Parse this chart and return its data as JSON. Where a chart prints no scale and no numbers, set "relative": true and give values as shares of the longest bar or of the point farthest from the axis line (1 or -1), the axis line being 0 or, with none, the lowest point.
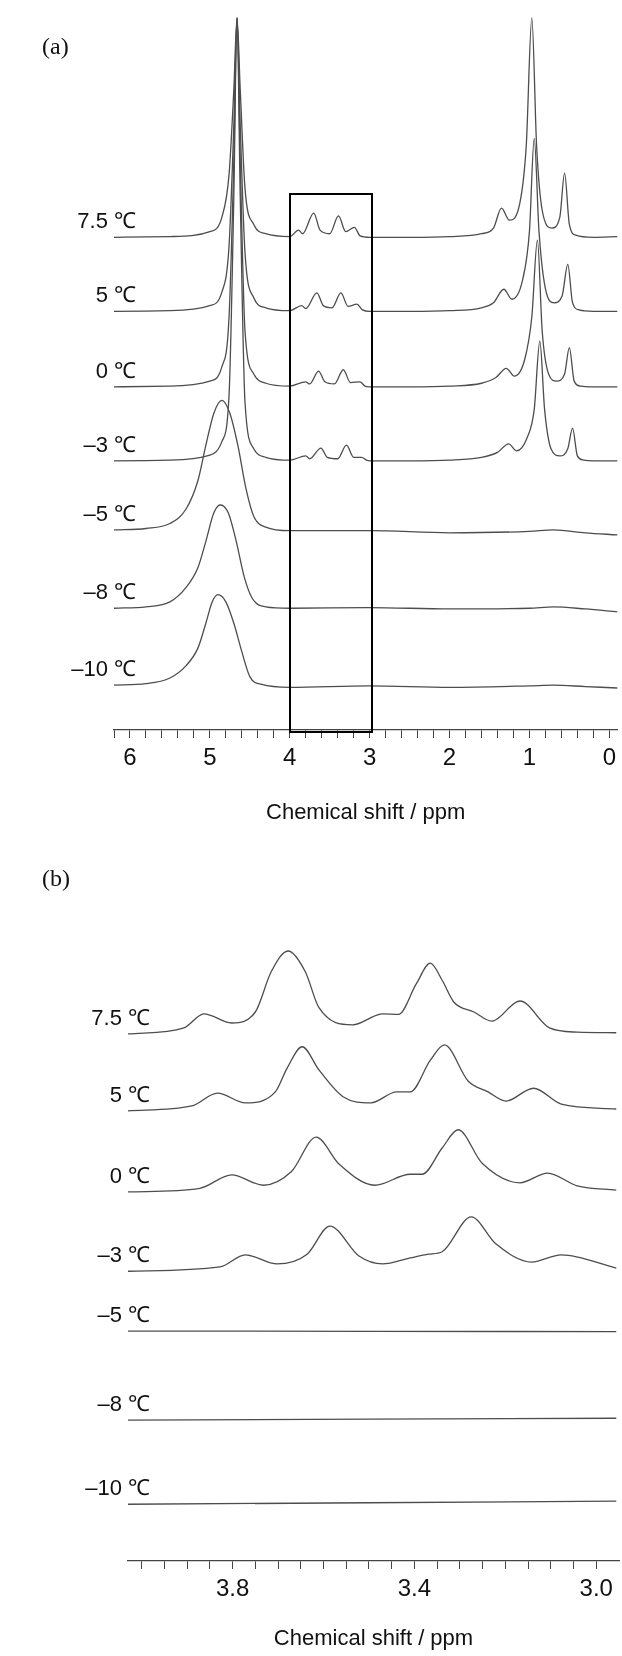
{
  "chart_data": [
    {
      "type": "line",
      "title": "(a)",
      "xlabel": "Chemical shift / ppm",
      "relative": true,
      "marker": "none",
      "xlim": [
        6.2,
        -0.1
      ],
      "xticks": [
        {
          "value": 6.2,
          "label": null
        },
        6,
        {
          "value": 5.8,
          "label": null
        },
        {
          "value": 5.6,
          "label": null
        },
        {
          "value": 5.4,
          "label": null
        },
        {
          "value": 5.2,
          "label": null
        },
        5,
        {
          "value": 4.8,
          "label": null
        },
        {
          "value": 4.6,
          "label": null
        },
        {
          "value": 4.4,
          "label": null
        },
        {
          "value": 4.2,
          "label": null
        },
        4,
        {
          "value": 3.8,
          "label": null
        },
        {
          "value": 3.6,
          "label": null
        },
        {
          "value": 3.4,
          "label": null
        },
        {
          "value": 3.2,
          "label": null
        },
        3,
        {
          "value": 2.8,
          "label": null
        },
        {
          "value": 2.6,
          "label": null
        },
        {
          "value": 2.4,
          "label": null
        },
        {
          "value": 2.2,
          "label": null
        },
        2,
        {
          "value": 1.8,
          "label": null
        },
        {
          "value": 1.6,
          "label": null
        },
        {
          "value": 1.4,
          "label": null
        },
        {
          "value": 1.2,
          "label": null
        },
        1,
        {
          "value": 0.8,
          "label": null
        },
        {
          "value": 0.6,
          "label": null
        },
        {
          "value": 0.4,
          "label": null
        },
        {
          "value": 0.2,
          "label": null
        },
        0
      ],
      "series": [
        {
          "name": "7.5 ℃",
          "color": "#4d4d4d",
          "x": [
            6.2,
            5.5,
            5.0,
            4.85,
            4.76,
            4.7,
            4.66,
            4.62,
            4.56,
            4.45,
            4.3,
            4.0,
            3.89,
            3.84,
            3.7,
            3.62,
            3.5,
            3.39,
            3.3,
            3.19,
            3.12,
            3.0,
            2.5,
            2.0,
            1.6,
            1.45,
            1.35,
            1.25,
            1.12,
            1.04,
            0.97,
            0.91,
            0.84,
            0.72,
            0.62,
            0.56,
            0.5,
            0.42,
            0.2,
            -0.1
          ],
          "values": [
            0.692,
            0.693,
            0.7,
            0.72,
            0.78,
            0.9,
            1,
            0.9,
            0.76,
            0.71,
            0.697,
            0.693,
            0.702,
            0.697,
            0.726,
            0.702,
            0.697,
            0.722,
            0.7,
            0.706,
            0.694,
            0.692,
            0.692,
            0.693,
            0.697,
            0.705,
            0.733,
            0.716,
            0.74,
            0.82,
            1,
            0.82,
            0.73,
            0.705,
            0.72,
            0.782,
            0.71,
            0.695,
            0.692,
            0.693
          ]
        },
        {
          "name": "5 ℃",
          "color": "#4d4d4d",
          "x": [
            6.2,
            5.5,
            5.0,
            4.85,
            4.76,
            4.7,
            4.66,
            4.62,
            4.56,
            4.45,
            4.3,
            4.0,
            3.85,
            3.8,
            3.66,
            3.58,
            3.47,
            3.36,
            3.27,
            3.16,
            3.09,
            3.0,
            2.5,
            2.0,
            1.6,
            1.45,
            1.32,
            1.22,
            1.09,
            1.0,
            0.94,
            0.88,
            0.8,
            0.69,
            0.59,
            0.52,
            0.46,
            0.38,
            0.2,
            -0.1
          ],
          "values": [
            0.588,
            0.589,
            0.596,
            0.615,
            0.68,
            0.85,
            1,
            0.85,
            0.67,
            0.607,
            0.593,
            0.589,
            0.596,
            0.592,
            0.614,
            0.596,
            0.593,
            0.614,
            0.595,
            0.598,
            0.59,
            0.588,
            0.588,
            0.589,
            0.593,
            0.6,
            0.619,
            0.605,
            0.63,
            0.7,
            0.831,
            0.7,
            0.62,
            0.6,
            0.61,
            0.654,
            0.6,
            0.59,
            0.588,
            0.588
          ]
        },
        {
          "name": "0 ℃",
          "color": "#4d4d4d",
          "x": [
            6.2,
            5.5,
            5.0,
            4.85,
            4.76,
            4.7,
            4.66,
            4.62,
            4.56,
            4.45,
            4.3,
            4.0,
            3.8,
            3.75,
            3.64,
            3.56,
            3.44,
            3.33,
            3.24,
            3.12,
            3.06,
            3.0,
            2.5,
            2.0,
            1.6,
            1.42,
            1.29,
            1.19,
            1.06,
            0.97,
            0.9,
            0.84,
            0.76,
            0.66,
            0.56,
            0.5,
            0.44,
            0.36,
            0.2,
            -0.1
          ],
          "values": [
            0.482,
            0.483,
            0.49,
            0.51,
            0.58,
            0.8,
            1,
            0.8,
            0.56,
            0.5,
            0.487,
            0.483,
            0.489,
            0.486,
            0.504,
            0.489,
            0.486,
            0.506,
            0.488,
            0.489,
            0.483,
            0.482,
            0.482,
            0.483,
            0.487,
            0.495,
            0.508,
            0.497,
            0.52,
            0.58,
            0.688,
            0.56,
            0.5,
            0.49,
            0.5,
            0.537,
            0.49,
            0.483,
            0.482,
            0.482
          ]
        },
        {
          "name": "–3 ℃",
          "color": "#4d4d4d",
          "x": [
            6.2,
            5.5,
            5.0,
            4.85,
            4.76,
            4.7,
            4.66,
            4.62,
            4.56,
            4.45,
            4.3,
            4.0,
            3.8,
            3.75,
            3.61,
            3.53,
            3.4,
            3.29,
            3.2,
            3.1,
            3.04,
            3.0,
            2.5,
            2.0,
            1.6,
            1.4,
            1.26,
            1.16,
            1.03,
            0.94,
            0.87,
            0.81,
            0.73,
            0.62,
            0.52,
            0.46,
            0.4,
            0.32,
            0.2,
            -0.1
          ],
          "values": [
            0.378,
            0.379,
            0.386,
            0.405,
            0.47,
            0.75,
            1,
            0.75,
            0.46,
            0.395,
            0.383,
            0.379,
            0.385,
            0.381,
            0.396,
            0.383,
            0.381,
            0.4,
            0.383,
            0.383,
            0.379,
            0.378,
            0.378,
            0.379,
            0.383,
            0.39,
            0.402,
            0.392,
            0.41,
            0.45,
            0.546,
            0.45,
            0.395,
            0.385,
            0.395,
            0.424,
            0.385,
            0.379,
            0.378,
            0.378
          ]
        },
        {
          "name": "–5 ℃",
          "color": "#4d4d4d",
          "x": [
            6.2,
            5.8,
            5.5,
            5.3,
            5.15,
            5.05,
            4.95,
            4.85,
            4.75,
            4.65,
            4.55,
            4.45,
            4.3,
            4.0,
            3.0,
            2.0,
            1.0,
            0.7,
            0.3,
            -0.1
          ],
          "values": [
            0.281,
            0.283,
            0.29,
            0.31,
            0.35,
            0.4,
            0.445,
            0.463,
            0.445,
            0.4,
            0.34,
            0.3,
            0.285,
            0.28,
            0.28,
            0.277,
            0.279,
            0.281,
            0.277,
            0.274
          ]
        },
        {
          "name": "–8 ℃",
          "color": "#4d4d4d",
          "x": [
            6.2,
            5.8,
            5.5,
            5.3,
            5.15,
            5.05,
            4.95,
            4.87,
            4.77,
            4.67,
            4.57,
            4.47,
            4.3,
            4.0,
            3.0,
            2.0,
            1.0,
            0.7,
            0.3,
            -0.1
          ],
          "values": [
            0.171,
            0.173,
            0.18,
            0.2,
            0.228,
            0.265,
            0.305,
            0.316,
            0.305,
            0.265,
            0.215,
            0.185,
            0.173,
            0.171,
            0.172,
            0.17,
            0.171,
            0.173,
            0.17,
            0.166
          ]
        },
        {
          "name": "–10 ℃",
          "color": "#4d4d4d",
          "x": [
            6.2,
            5.8,
            5.5,
            5.3,
            5.15,
            5.05,
            4.97,
            4.9,
            4.8,
            4.7,
            4.6,
            4.5,
            4.35,
            4.0,
            3.0,
            2.0,
            1.0,
            0.7,
            0.3,
            -0.1
          ],
          "values": [
            0.063,
            0.065,
            0.073,
            0.09,
            0.115,
            0.15,
            0.18,
            0.19,
            0.18,
            0.15,
            0.11,
            0.075,
            0.064,
            0.06,
            0.062,
            0.06,
            0.062,
            0.063,
            0.061,
            0.059
          ]
        }
      ]
    },
    {
      "type": "line",
      "title": "(b)",
      "xlabel": "Chemical shift / ppm",
      "relative": true,
      "marker": "none",
      "xlim": [
        4.03,
        2.95
      ],
      "xticks": [
        {
          "value": 4.0,
          "label": null
        },
        {
          "value": 3.95,
          "label": null
        },
        {
          "value": 3.9,
          "label": null
        },
        {
          "value": 3.85,
          "label": null
        },
        3.8,
        {
          "value": 3.75,
          "label": null
        },
        {
          "value": 3.7,
          "label": null
        },
        {
          "value": 3.65,
          "label": null
        },
        {
          "value": 3.6,
          "label": null
        },
        {
          "value": 3.55,
          "label": null
        },
        {
          "value": 3.5,
          "label": null
        },
        {
          "value": 3.45,
          "label": null
        },
        3.4,
        {
          "value": 3.35,
          "label": null
        },
        {
          "value": 3.3,
          "label": null
        },
        {
          "value": 3.25,
          "label": null
        },
        {
          "value": 3.2,
          "label": null
        },
        {
          "value": 3.15,
          "label": null
        },
        {
          "value": 3.1,
          "label": null
        },
        {
          "value": 3.05,
          "label": null
        },
        {
          "value": 3.0,
          "label": "3.0"
        }
      ],
      "series": [
        {
          "name": "7.5 ℃",
          "color": "#4d4d4d",
          "x": [
            4.03,
            3.907,
            3.863,
            3.802,
            3.75,
            3.715,
            3.678,
            3.64,
            3.61,
            3.536,
            3.47,
            3.435,
            3.396,
            3.365,
            3.339,
            3.313,
            3.269,
            3.23,
            3.168,
            3.103,
            3.042,
            2.956
          ],
          "values": [
            0.864,
            0.874,
            0.897,
            0.882,
            0.9,
            0.966,
            1,
            0.966,
            0.907,
            0.879,
            0.897,
            0.896,
            0.946,
            0.98,
            0.952,
            0.916,
            0.9,
            0.885,
            0.918,
            0.874,
            0.867,
            0.866
          ]
        },
        {
          "name": "5 ℃",
          "color": "#4d4d4d",
          "x": [
            4.03,
            3.89,
            3.833,
            3.772,
            3.706,
            3.68,
            3.647,
            3.61,
            3.557,
            3.496,
            3.439,
            3.409,
            3.365,
            3.334,
            3.282,
            3.238,
            3.199,
            3.138,
            3.077,
            2.956
          ],
          "values": [
            0.738,
            0.746,
            0.767,
            0.751,
            0.769,
            0.808,
            0.843,
            0.805,
            0.761,
            0.751,
            0.769,
            0.769,
            0.821,
            0.846,
            0.787,
            0.769,
            0.754,
            0.775,
            0.749,
            0.741
          ]
        },
        {
          "name": "0 ℃",
          "color": "#4d4d4d",
          "x": [
            4.03,
            3.872,
            3.802,
            3.732,
            3.671,
            3.616,
            3.566,
            3.487,
            3.409,
            3.383,
            3.339,
            3.304,
            3.251,
            3.168,
            3.107,
            3.042,
            2.956
          ],
          "values": [
            0.605,
            0.611,
            0.633,
            0.616,
            0.638,
            0.695,
            0.651,
            0.616,
            0.634,
            0.634,
            0.677,
            0.707,
            0.652,
            0.62,
            0.636,
            0.615,
            0.608
          ]
        },
        {
          "name": "–3 ℃",
          "color": "#4d4d4d",
          "x": [
            4.03,
            3.828,
            3.772,
            3.702,
            3.636,
            3.586,
            3.522,
            3.47,
            3.409,
            3.369,
            3.339,
            3.275,
            3.221,
            3.142,
            3.077,
            2.956
          ],
          "values": [
            0.475,
            0.482,
            0.502,
            0.487,
            0.503,
            0.549,
            0.5,
            0.487,
            0.497,
            0.503,
            0.507,
            0.564,
            0.52,
            0.49,
            0.502,
            0.48
          ]
        },
        {
          "name": "–5 ℃",
          "color": "#4d4d4d",
          "x": [
            4.03,
            2.956
          ],
          "values": [
            0.377,
            0.376
          ]
        },
        {
          "name": "–8 ℃",
          "color": "#4d4d4d",
          "x": [
            4.03,
            2.956
          ],
          "values": [
            0.231,
            0.234
          ]
        },
        {
          "name": "–10 ℃",
          "color": "#4d4d4d",
          "x": [
            4.03,
            2.956
          ],
          "values": [
            0.093,
            0.098
          ]
        }
      ]
    }
  ]
}
